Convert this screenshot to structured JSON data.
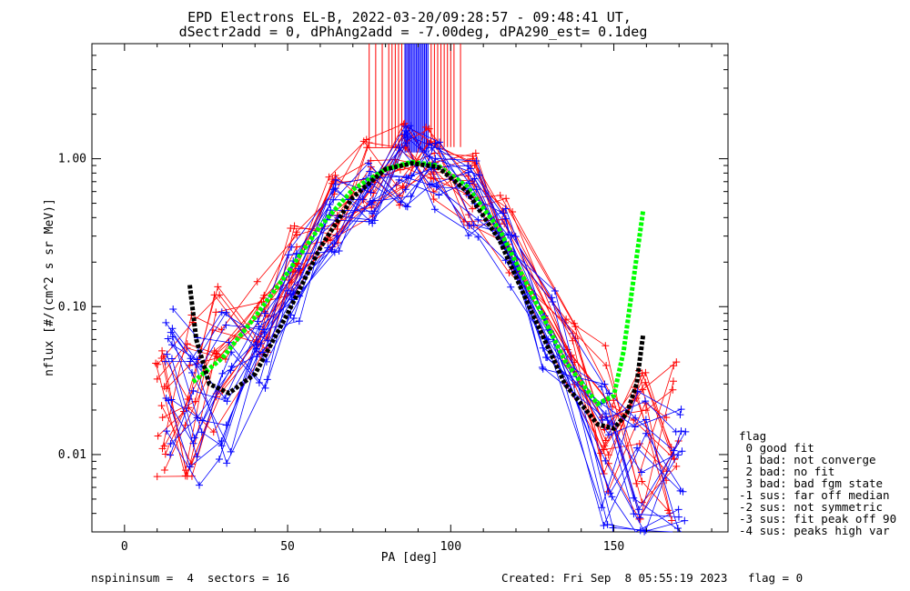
{
  "chart_data": {
    "type": "scatter",
    "title_line1": "EPD Electrons EL-B, 2022-03-20/09:28:57 - 09:48:41 UT,",
    "title_line2": "dSectr2add = 0, dPhAng2add = -7.00deg, dPA290_est=   0.1deg",
    "xlabel": "PA [deg]",
    "ylabel": "nflux [#/(cm^2 s sr MeV)]",
    "xlim": [
      -10,
      185
    ],
    "ylim": [
      0.003,
      6.0
    ],
    "yscale": "log",
    "x_ticks": [
      0,
      50,
      100,
      150
    ],
    "y_ticks": [
      0.01,
      0.1,
      1.0
    ],
    "x_tick_labels": [
      "0",
      "50",
      "100",
      "150"
    ],
    "y_tick_labels": [
      "0.01",
      "0.10",
      "1.00"
    ],
    "colors": {
      "red": "#ff0000",
      "blue": "#0000ff",
      "green": "#00ff00",
      "black": "#000000"
    },
    "pa_sample_red": [
      11,
      20,
      29,
      42,
      52,
      64,
      75,
      85,
      94,
      106,
      117,
      137,
      148,
      158,
      168
    ],
    "pa_sample_blue": [
      13,
      22,
      31,
      42,
      52,
      64,
      75,
      86,
      95,
      107,
      118,
      130,
      148,
      158,
      170
    ],
    "series": [
      {
        "name": "red sectors",
        "color": "red",
        "count": 16,
        "profile": [
          0.018,
          0.025,
          0.045,
          0.09,
          0.2,
          0.45,
          0.75,
          0.92,
          0.88,
          0.6,
          0.3,
          0.05,
          0.016,
          0.012,
          0.012
        ]
      },
      {
        "name": "blue sectors",
        "color": "blue",
        "count": 16,
        "profile": [
          0.03,
          0.022,
          0.028,
          0.05,
          0.15,
          0.4,
          0.68,
          0.88,
          0.86,
          0.55,
          0.25,
          0.07,
          0.011,
          0.008,
          0.007
        ]
      },
      {
        "name": "green fit",
        "color": "green",
        "x": [
          21,
          30,
          40,
          50,
          60,
          70,
          80,
          88,
          96,
          105,
          115,
          125,
          135,
          145,
          150,
          153,
          156,
          159
        ],
        "y": [
          0.031,
          0.045,
          0.085,
          0.17,
          0.35,
          0.62,
          0.85,
          0.95,
          0.9,
          0.65,
          0.33,
          0.12,
          0.043,
          0.022,
          0.025,
          0.05,
          0.15,
          0.45
        ]
      },
      {
        "name": "black fit",
        "color": "black",
        "x": [
          20,
          22,
          26,
          32,
          40,
          50,
          60,
          70,
          80,
          88,
          96,
          105,
          115,
          125,
          135,
          145,
          150,
          154,
          157,
          159
        ],
        "y": [
          0.14,
          0.06,
          0.03,
          0.026,
          0.035,
          0.09,
          0.25,
          0.55,
          0.85,
          0.93,
          0.88,
          0.6,
          0.28,
          0.09,
          0.03,
          0.016,
          0.015,
          0.019,
          0.03,
          0.065
        ]
      }
    ],
    "red_ticks_pa": [
      75,
      77,
      79,
      81,
      82,
      83,
      84,
      85,
      86,
      87,
      94,
      95,
      96,
      97,
      98,
      99,
      100,
      101,
      103
    ],
    "blue_ticks_pa": [
      86,
      86.5,
      87,
      87.5,
      88,
      88.5,
      89,
      89.5,
      90,
      90.5,
      91,
      91.5,
      92,
      92.5,
      93
    ],
    "legend": {
      "title": "flag",
      "items": [
        " 0 good fit",
        " 1 bad: not converge",
        " 2 bad: no fit",
        " 3 bad: bad fgm state",
        "-1 sus: far off median",
        "-2 sus: not symmetric",
        "-3 sus: fit peak off 90",
        "-4 sus: peaks high var"
      ]
    },
    "footer_left": "nspininsum =  4  sectors = 16",
    "footer_right": "Created: Fri Sep  8 05:55:19 2023   flag = 0"
  }
}
